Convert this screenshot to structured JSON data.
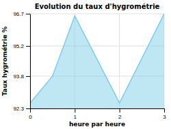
{
  "chart_data": {
    "type": "area",
    "title": "Evolution du taux d'hygrométrie",
    "xlabel": "heure par heure",
    "ylabel": "Taux hygrométrie %",
    "x": [
      0,
      0.5,
      1,
      2,
      3
    ],
    "values": [
      92.55,
      93.8,
      96.6,
      92.55,
      96.7
    ],
    "color": "#7dcde8",
    "xlim": [
      0,
      3
    ],
    "ylim": [
      92.3,
      96.7
    ],
    "xticks": [
      0,
      1,
      2,
      3
    ],
    "yticks": [
      92.3,
      93.8,
      95.2,
      96.7
    ],
    "grid": true
  }
}
